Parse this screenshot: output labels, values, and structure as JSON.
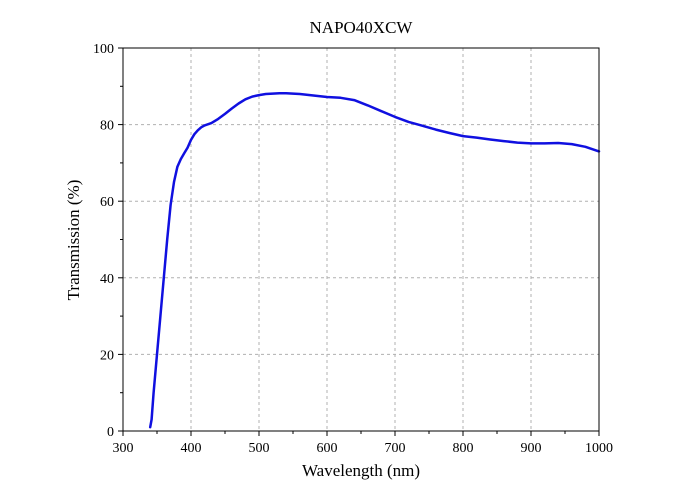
{
  "chart_data": {
    "type": "line",
    "title": "NAPO40XCW",
    "xlabel": "Wavelength (nm)",
    "ylabel": "Transmission (%)",
    "xlim": [
      300,
      1000
    ],
    "ylim": [
      0,
      100
    ],
    "xticks": [
      300,
      400,
      500,
      600,
      700,
      800,
      900,
      1000
    ],
    "yticks": [
      0,
      20,
      40,
      60,
      80,
      100
    ],
    "grid": true,
    "colors": {
      "line": "#1010e0"
    },
    "series": [
      {
        "x": [
          340,
          342,
          345,
          350,
          355,
          360,
          365,
          370,
          375,
          380,
          385,
          390,
          395,
          400,
          405,
          410,
          415,
          420,
          430,
          440,
          450,
          460,
          470,
          480,
          490,
          500,
          510,
          520,
          530,
          540,
          550,
          560,
          580,
          600,
          620,
          640,
          660,
          680,
          700,
          720,
          740,
          760,
          780,
          800,
          820,
          840,
          860,
          880,
          900,
          920,
          940,
          960,
          980,
          1000
        ],
        "y": [
          1,
          3,
          10,
          20,
          30,
          40,
          50,
          59,
          65,
          69,
          71,
          72.5,
          74,
          76,
          77.5,
          78.5,
          79.3,
          79.8,
          80.4,
          81.5,
          82.8,
          84.2,
          85.5,
          86.6,
          87.3,
          87.7,
          88.0,
          88.1,
          88.2,
          88.2,
          88.1,
          88.0,
          87.6,
          87.2,
          87.0,
          86.4,
          85.0,
          83.5,
          82.0,
          80.7,
          79.7,
          78.7,
          77.8,
          77.0,
          76.6,
          76.1,
          75.7,
          75.3,
          75.1,
          75.1,
          75.2,
          74.9,
          74.2,
          73.0
        ]
      }
    ]
  }
}
